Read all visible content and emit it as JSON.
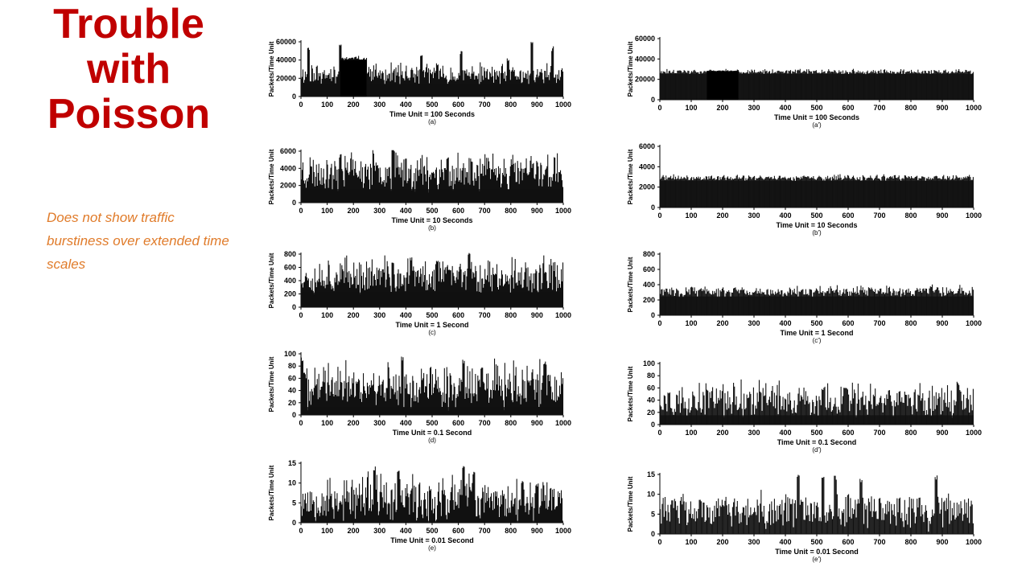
{
  "slide": {
    "title": "Trouble with Poisson",
    "note": "Does not show traffic burstiness over extended time scales"
  },
  "colors": {
    "title": "#c00000",
    "note": "#e07b2a",
    "trace": "#111111"
  },
  "chart_data": [
    {
      "type": "bar",
      "panel": "(a)",
      "title": "",
      "ylabel": "Packets/Time Unit",
      "xlabel": "Time Unit = 100 Seconds",
      "xlim": [
        0,
        1000
      ],
      "ylim": [
        0,
        60000
      ],
      "yticks": [
        0,
        20000,
        40000,
        60000
      ],
      "xticks": [
        0,
        100,
        200,
        300,
        400,
        500,
        600,
        700,
        800,
        900,
        1000
      ],
      "baseline": 22000,
      "noise": 9000,
      "spikes": [
        [
          30,
          55000
        ],
        [
          150,
          60000
        ],
        [
          220,
          45000
        ],
        [
          460,
          48000
        ],
        [
          520,
          38000
        ],
        [
          610,
          50000
        ],
        [
          790,
          42000
        ],
        [
          880,
          60000
        ],
        [
          960,
          55000
        ]
      ],
      "burst": [
        150,
        250,
        40000
      ],
      "seed": 11
    },
    {
      "type": "bar",
      "panel": "(b)",
      "title": "",
      "ylabel": "Packets/Time Unit",
      "xlabel": "Time Unit = 10 Seconds",
      "xlim": [
        0,
        1000
      ],
      "ylim": [
        0,
        6000
      ],
      "yticks": [
        0,
        2000,
        4000,
        6000
      ],
      "xticks": [
        0,
        100,
        200,
        300,
        400,
        500,
        600,
        700,
        800,
        900,
        1000
      ],
      "baseline": 3200,
      "noise": 1800,
      "spikes": [
        [
          350,
          7000
        ],
        [
          560,
          5500
        ],
        [
          150,
          5800
        ],
        [
          650,
          5200
        ]
      ],
      "seed": 23
    },
    {
      "type": "bar",
      "panel": "(c)",
      "title": "",
      "ylabel": "Packets/Time Unit",
      "xlabel": "Time Unit = 1 Second",
      "xlim": [
        0,
        1000
      ],
      "ylim": [
        0,
        800
      ],
      "yticks": [
        0,
        200,
        400,
        600,
        800
      ],
      "xticks": [
        0,
        100,
        200,
        300,
        400,
        500,
        600,
        700,
        800,
        900,
        1000
      ],
      "baseline": 420,
      "noise": 220,
      "spikes": [
        [
          640,
          880
        ],
        [
          420,
          780
        ],
        [
          520,
          760
        ],
        [
          350,
          700
        ]
      ],
      "seed": 37
    },
    {
      "type": "bar",
      "panel": "(d)",
      "title": "",
      "ylabel": "Packets/Time Unit",
      "xlabel": "Time Unit = 0.1 Second",
      "xlim": [
        0,
        1000
      ],
      "ylim": [
        0,
        100
      ],
      "yticks": [
        0,
        20,
        40,
        60,
        80,
        100
      ],
      "xticks": [
        0,
        100,
        200,
        300,
        400,
        500,
        600,
        700,
        800,
        900,
        1000
      ],
      "baseline": 40,
      "noise": 30,
      "spikes": [
        [
          5,
          95
        ],
        [
          385,
          96
        ],
        [
          620,
          92
        ],
        [
          930,
          88
        ],
        [
          690,
          80
        ]
      ],
      "seed": 41
    },
    {
      "type": "bar",
      "panel": "(e)",
      "title": "",
      "ylabel": "Packets/Time Unit",
      "xlabel": "Time Unit = 0.01 Second",
      "xlim": [
        0,
        1000
      ],
      "ylim": [
        0,
        15
      ],
      "yticks": [
        0,
        5,
        10,
        15
      ],
      "xticks": [
        0,
        100,
        200,
        300,
        400,
        500,
        600,
        700,
        800,
        900,
        1000
      ],
      "baseline": 5,
      "noise": 5,
      "spikes": [
        [
          280,
          14.5
        ],
        [
          370,
          14
        ],
        [
          620,
          14.5
        ],
        [
          660,
          13
        ],
        [
          900,
          10
        ]
      ],
      "seed": 53
    },
    {
      "type": "bar",
      "panel": "(a')",
      "title": "",
      "ylabel": "Packets/Time Unit",
      "xlabel": "Time Unit = 100 Seconds",
      "xlim": [
        0,
        1000
      ],
      "ylim": [
        0,
        60000
      ],
      "yticks": [
        0,
        20000,
        40000,
        60000
      ],
      "xticks": [
        0,
        100,
        200,
        300,
        400,
        500,
        600,
        700,
        800,
        900,
        1000
      ],
      "baseline": 27000,
      "noise": 2000,
      "spikes": [],
      "burst": [
        150,
        250,
        28000
      ],
      "seed": 61
    },
    {
      "type": "bar",
      "panel": "(b')",
      "title": "",
      "ylabel": "Packets/Time Unit",
      "xlabel": "Time Unit = 10 Seconds",
      "xlim": [
        0,
        1000
      ],
      "ylim": [
        0,
        6000
      ],
      "yticks": [
        0,
        2000,
        4000,
        6000
      ],
      "xticks": [
        0,
        100,
        200,
        300,
        400,
        500,
        600,
        700,
        800,
        900,
        1000
      ],
      "baseline": 2850,
      "noise": 250,
      "spikes": [],
      "seed": 71
    },
    {
      "type": "bar",
      "panel": "(c')",
      "title": "",
      "ylabel": "Packets/Time Unit",
      "xlabel": "Time Unit = 1 Second",
      "xlim": [
        0,
        1000
      ],
      "ylim": [
        0,
        800
      ],
      "yticks": [
        0,
        200,
        400,
        600,
        800
      ],
      "xticks": [
        0,
        100,
        200,
        300,
        400,
        500,
        600,
        700,
        800,
        900,
        1000
      ],
      "baseline": 300,
      "noise": 60,
      "spikes": [
        [
          100,
          380
        ],
        [
          480,
          370
        ]
      ],
      "seed": 83
    },
    {
      "type": "bar",
      "panel": "(d')",
      "title": "",
      "ylabel": "Packets/Time Unit",
      "xlabel": "Time Unit = 0.1 Second",
      "xlim": [
        0,
        1000
      ],
      "ylim": [
        0,
        100
      ],
      "yticks": [
        0,
        20,
        40,
        60,
        80,
        100
      ],
      "xticks": [
        0,
        100,
        200,
        300,
        400,
        500,
        600,
        700,
        800,
        900,
        1000
      ],
      "baseline": 35,
      "noise": 22,
      "spikes": [
        [
          950,
          72
        ],
        [
          590,
          62
        ],
        [
          30,
          56
        ]
      ],
      "seed": 97
    },
    {
      "type": "bar",
      "panel": "(e')",
      "title": "",
      "ylabel": "Packets/Time Unit",
      "xlabel": "Time Unit = 0.01 Second",
      "xlim": [
        0,
        1000
      ],
      "ylim": [
        0,
        15
      ],
      "yticks": [
        0,
        5,
        10,
        15
      ],
      "xticks": [
        0,
        100,
        200,
        300,
        400,
        500,
        600,
        700,
        800,
        900,
        1000
      ],
      "baseline": 3,
      "noise": 7,
      "spikes": [
        [
          520,
          15
        ],
        [
          560,
          15
        ],
        [
          440,
          15
        ],
        [
          880,
          15
        ],
        [
          640,
          14
        ]
      ],
      "sparse": true,
      "seed": 103
    }
  ]
}
